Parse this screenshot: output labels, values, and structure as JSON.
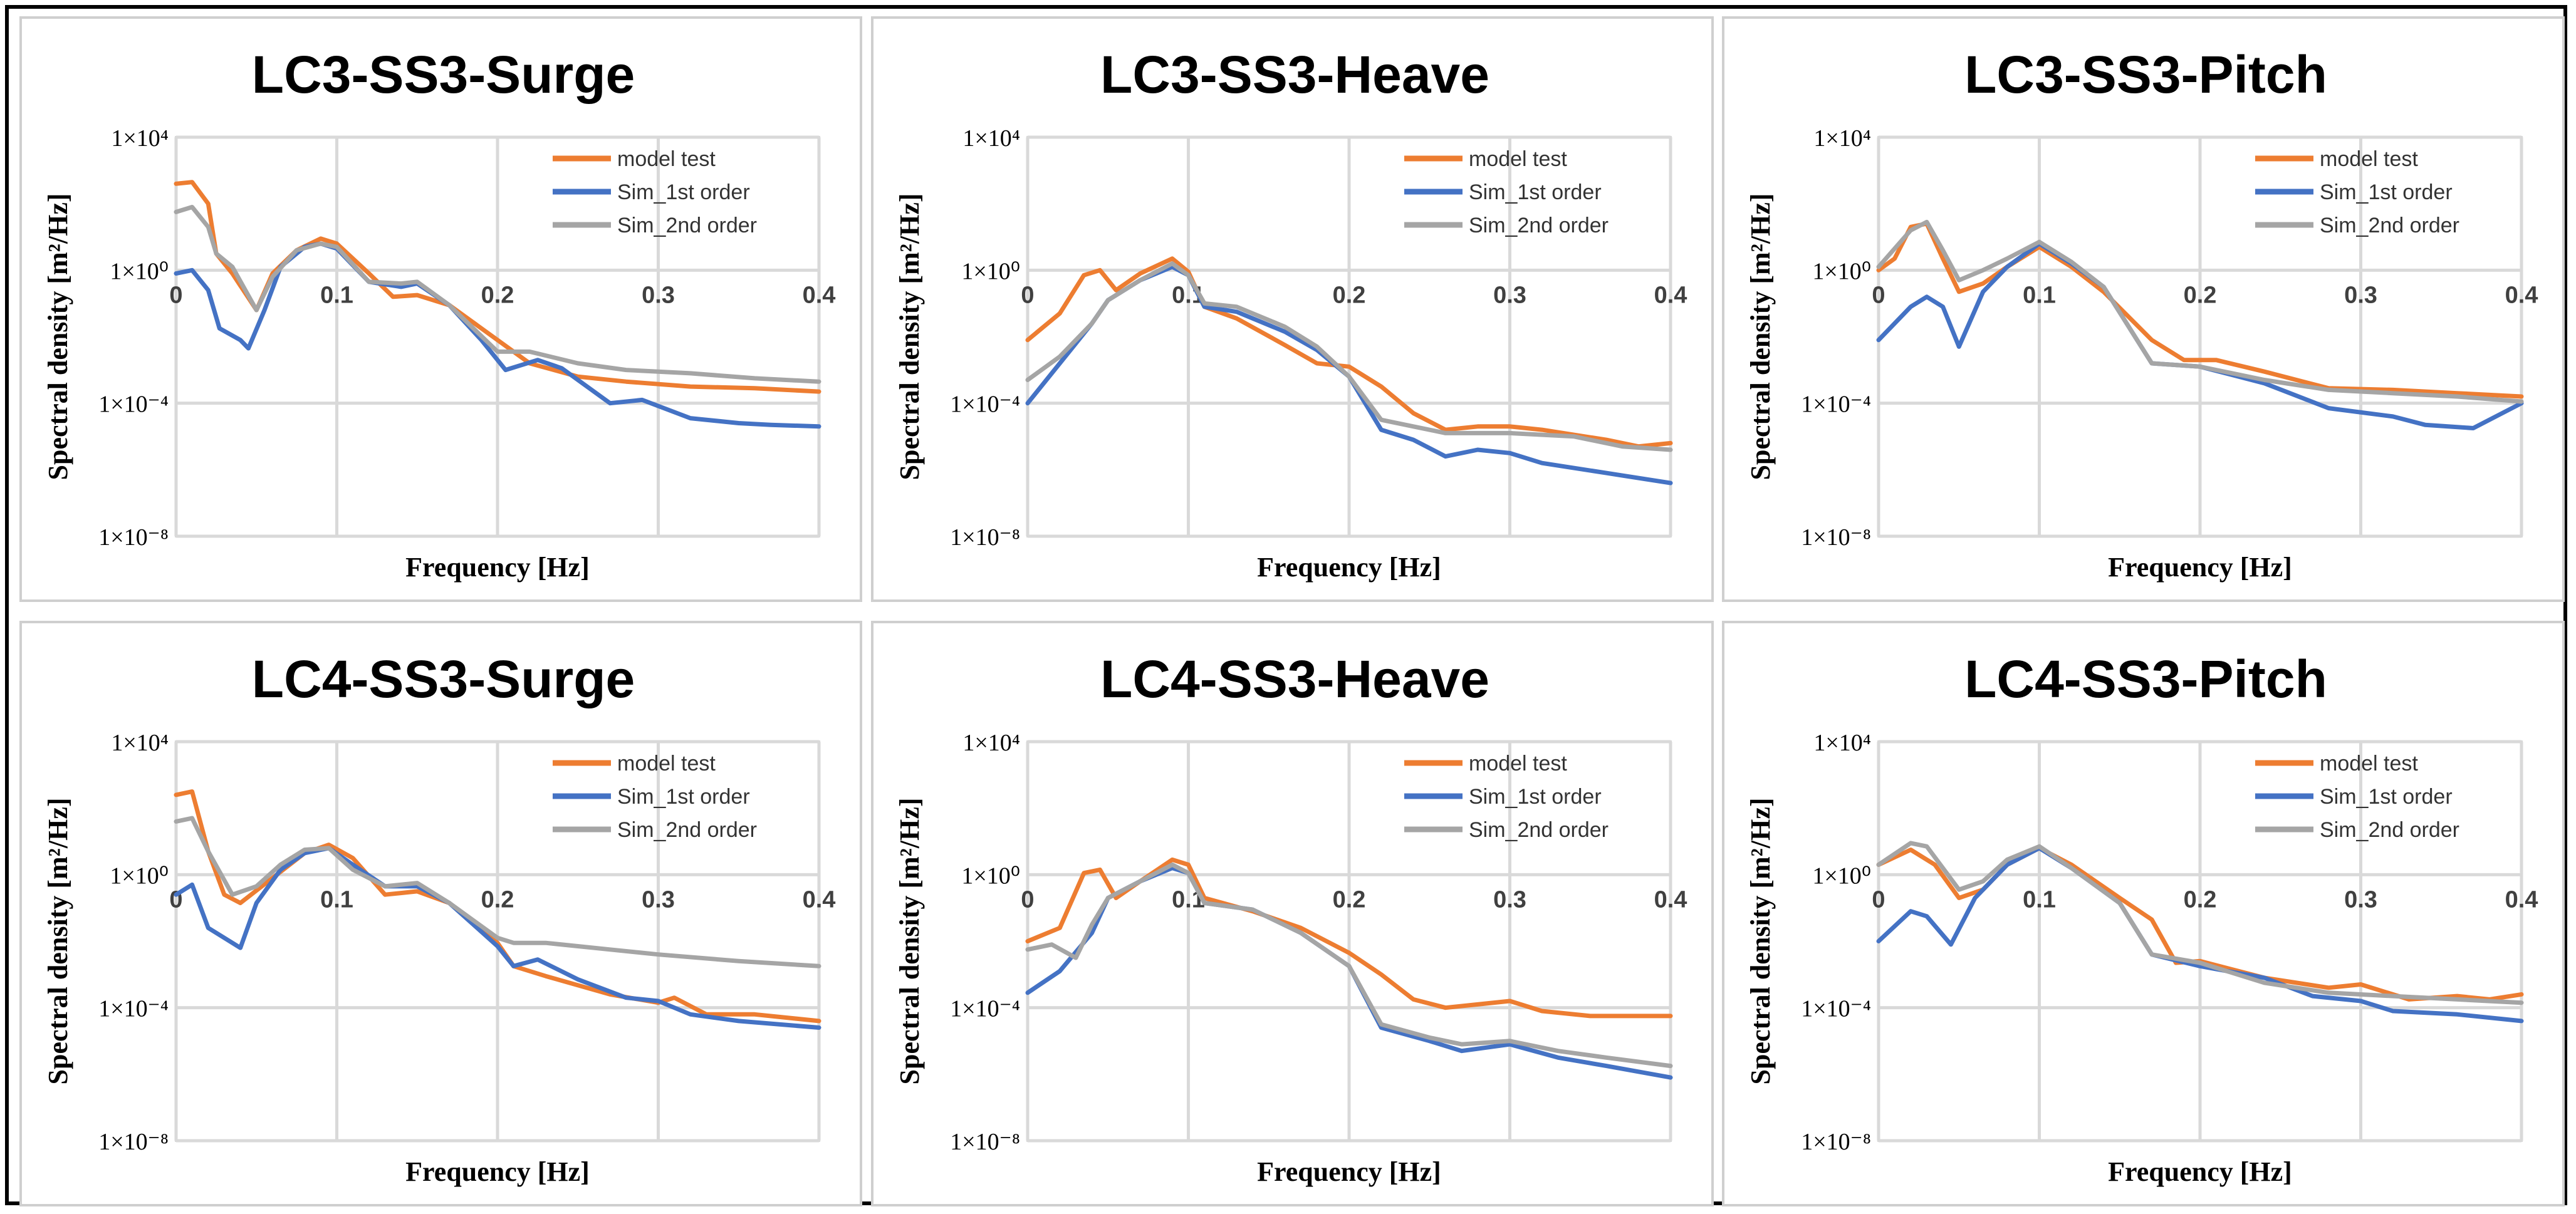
{
  "colors": {
    "model_test": "#ED7D31",
    "sim_1st": "#4472C4",
    "sim_2nd": "#A5A5A5",
    "grid": "#D9D9D9"
  },
  "chart_data": [
    {
      "type": "line",
      "title": "LC3-SS3-Surge",
      "xlabel": "Frequency [Hz]",
      "ylabel": "Spectral density [m²/Hz]",
      "xlim": [
        0,
        0.4
      ],
      "ylim_log10": [
        -8,
        4
      ],
      "yscale": "log",
      "grid": true,
      "legend_position": "top-right",
      "xticks": [
        0,
        0.1,
        0.2,
        0.3,
        0.4
      ],
      "xtick_labels": [
        "0",
        "0.1",
        "0.2",
        "0.3",
        "0.4"
      ],
      "yticks_log10": [
        4,
        0,
        -4,
        -8
      ],
      "ytick_labels": [
        "1×10⁴",
        "1×10⁰",
        "1×10⁻⁴",
        "1×10⁻⁸"
      ],
      "series": [
        {
          "name": "model test",
          "x": [
            0,
            0.01,
            0.02,
            0.025,
            0.035,
            0.05,
            0.06,
            0.075,
            0.09,
            0.1,
            0.12,
            0.135,
            0.15,
            0.17,
            0.2,
            0.22,
            0.25,
            0.28,
            0.32,
            0.36,
            0.4
          ],
          "y_log10": [
            2.6,
            2.65,
            2.0,
            0.5,
            -0.1,
            -1.2,
            -0.1,
            0.6,
            0.95,
            0.8,
            -0.1,
            -0.8,
            -0.75,
            -1.05,
            -2.1,
            -2.8,
            -3.2,
            -3.35,
            -3.5,
            -3.55,
            -3.65
          ]
        },
        {
          "name": "Sim_1st order",
          "x": [
            0,
            0.01,
            0.02,
            0.027,
            0.04,
            0.045,
            0.055,
            0.065,
            0.08,
            0.09,
            0.1,
            0.12,
            0.14,
            0.15,
            0.17,
            0.19,
            0.205,
            0.225,
            0.24,
            0.27,
            0.29,
            0.32,
            0.35,
            0.37,
            0.4
          ],
          "y_log10": [
            -0.1,
            0,
            -0.6,
            -1.75,
            -2.1,
            -2.35,
            -1.2,
            0.1,
            0.7,
            0.8,
            0.65,
            -0.35,
            -0.5,
            -0.4,
            -1.05,
            -2.1,
            -3.0,
            -2.7,
            -2.95,
            -4.0,
            -3.9,
            -4.45,
            -4.6,
            -4.65,
            -4.7
          ]
        },
        {
          "name": "Sim_2nd order",
          "x": [
            0,
            0.01,
            0.02,
            0.025,
            0.035,
            0.05,
            0.06,
            0.075,
            0.09,
            0.1,
            0.12,
            0.14,
            0.15,
            0.17,
            0.2,
            0.22,
            0.25,
            0.28,
            0.32,
            0.36,
            0.4
          ],
          "y_log10": [
            1.75,
            1.9,
            1.3,
            0.5,
            0.1,
            -1.2,
            -0.2,
            0.6,
            0.8,
            0.7,
            -0.35,
            -0.4,
            -0.35,
            -1.05,
            -2.45,
            -2.45,
            -2.8,
            -3.0,
            -3.1,
            -3.25,
            -3.35
          ]
        }
      ]
    },
    {
      "type": "line",
      "title": "LC3-SS3-Heave",
      "xlabel": "Frequency [Hz]",
      "ylabel": "Spectral density [m²/Hz]",
      "xlim": [
        0,
        0.4
      ],
      "ylim_log10": [
        -8,
        4
      ],
      "yscale": "log",
      "grid": true,
      "legend_position": "top-right",
      "xticks": [
        0,
        0.1,
        0.2,
        0.3,
        0.4
      ],
      "xtick_labels": [
        "0",
        "0.1",
        "0.2",
        "0.3",
        "0.4"
      ],
      "yticks_log10": [
        4,
        0,
        -4,
        -8
      ],
      "ytick_labels": [
        "1×10⁴",
        "1×10⁰",
        "1×10⁻⁴",
        "1×10⁻⁸"
      ],
      "series": [
        {
          "name": "model test",
          "x": [
            0,
            0.02,
            0.035,
            0.045,
            0.055,
            0.07,
            0.09,
            0.1,
            0.11,
            0.13,
            0.16,
            0.18,
            0.2,
            0.22,
            0.24,
            0.26,
            0.28,
            0.3,
            0.32,
            0.36,
            0.38,
            0.4
          ],
          "y_log10": [
            -2.1,
            -1.3,
            -0.15,
            0,
            -0.6,
            -0.1,
            0.35,
            -0.05,
            -1.1,
            -1.45,
            -2.25,
            -2.8,
            -2.9,
            -3.5,
            -4.3,
            -4.8,
            -4.7,
            -4.7,
            -4.8,
            -5.1,
            -5.3,
            -5.2
          ]
        },
        {
          "name": "Sim_1st order",
          "x": [
            0,
            0.02,
            0.04,
            0.05,
            0.07,
            0.09,
            0.1,
            0.11,
            0.13,
            0.16,
            0.18,
            0.2,
            0.22,
            0.24,
            0.26,
            0.28,
            0.3,
            0.32,
            0.36,
            0.4
          ],
          "y_log10": [
            -4,
            -2.8,
            -1.6,
            -0.9,
            -0.3,
            0.1,
            -0.15,
            -1.1,
            -1.25,
            -1.85,
            -2.4,
            -3.2,
            -4.8,
            -5.1,
            -5.6,
            -5.4,
            -5.5,
            -5.8,
            -6.1,
            -6.4
          ]
        },
        {
          "name": "Sim_2nd order",
          "x": [
            0,
            0.02,
            0.04,
            0.05,
            0.07,
            0.09,
            0.1,
            0.11,
            0.13,
            0.16,
            0.18,
            0.2,
            0.22,
            0.24,
            0.26,
            0.3,
            0.34,
            0.37,
            0.4
          ],
          "y_log10": [
            -3.3,
            -2.6,
            -1.6,
            -0.9,
            -0.3,
            0.2,
            -0.15,
            -1.0,
            -1.1,
            -1.7,
            -2.3,
            -3.2,
            -4.5,
            -4.7,
            -4.9,
            -4.9,
            -5.0,
            -5.3,
            -5.4
          ]
        }
      ]
    },
    {
      "type": "line",
      "title": "LC3-SS3-Pitch",
      "xlabel": "Frequency [Hz]",
      "ylabel": "Spectral density [m²/Hz]",
      "xlim": [
        0,
        0.4
      ],
      "ylim_log10": [
        -8,
        4
      ],
      "yscale": "log",
      "grid": true,
      "legend_position": "top-right",
      "xticks": [
        0,
        0.1,
        0.2,
        0.3,
        0.4
      ],
      "xtick_labels": [
        "0",
        "0.1",
        "0.2",
        "0.3",
        "0.4"
      ],
      "yticks_log10": [
        4,
        0,
        -4,
        -8
      ],
      "ytick_labels": [
        "1×10⁴",
        "1×10⁰",
        "1×10⁻⁴",
        "1×10⁻⁸"
      ],
      "series": [
        {
          "name": "model test",
          "x": [
            0,
            0.01,
            0.02,
            0.03,
            0.04,
            0.05,
            0.065,
            0.08,
            0.1,
            0.12,
            0.14,
            0.17,
            0.19,
            0.21,
            0.24,
            0.28,
            0.32,
            0.36,
            0.4
          ],
          "y_log10": [
            0,
            0.35,
            1.3,
            1.4,
            0.35,
            -0.65,
            -0.4,
            0.1,
            0.7,
            0.1,
            -0.65,
            -2.1,
            -2.7,
            -2.7,
            -3.05,
            -3.55,
            -3.6,
            -3.7,
            -3.8
          ]
        },
        {
          "name": "Sim_1st order",
          "x": [
            0,
            0.02,
            0.03,
            0.04,
            0.05,
            0.065,
            0.08,
            0.1,
            0.12,
            0.14,
            0.17,
            0.2,
            0.24,
            0.28,
            0.32,
            0.34,
            0.37,
            0.4
          ],
          "y_log10": [
            -2.1,
            -1.1,
            -0.8,
            -1.1,
            -2.3,
            -0.65,
            0.1,
            0.8,
            0.2,
            -0.5,
            -2.8,
            -2.9,
            -3.4,
            -4.15,
            -4.4,
            -4.65,
            -4.75,
            -4.0
          ]
        },
        {
          "name": "Sim_2nd order",
          "x": [
            0,
            0.02,
            0.03,
            0.04,
            0.05,
            0.065,
            0.08,
            0.1,
            0.12,
            0.14,
            0.17,
            0.2,
            0.24,
            0.28,
            0.32,
            0.36,
            0.4
          ],
          "y_log10": [
            0.1,
            1.2,
            1.45,
            0.6,
            -0.3,
            0,
            0.35,
            0.85,
            0.25,
            -0.5,
            -2.8,
            -2.9,
            -3.3,
            -3.6,
            -3.7,
            -3.8,
            -3.95
          ]
        }
      ]
    },
    {
      "type": "line",
      "title": "LC4-SS3-Surge",
      "xlabel": "Frequency [Hz]",
      "ylabel": "Spectral density [m²/Hz]",
      "xlim": [
        0,
        0.4
      ],
      "ylim_log10": [
        -8,
        4
      ],
      "yscale": "log",
      "grid": true,
      "legend_position": "top-right",
      "xticks": [
        0,
        0.1,
        0.2,
        0.3,
        0.4
      ],
      "xtick_labels": [
        "0",
        "0.1",
        "0.2",
        "0.3",
        "0.4"
      ],
      "yticks_log10": [
        4,
        0,
        -4,
        -8
      ],
      "ytick_labels": [
        "1×10⁴",
        "1×10⁰",
        "1×10⁻⁴",
        "1×10⁻⁸"
      ],
      "series": [
        {
          "name": "model test",
          "x": [
            0,
            0.01,
            0.02,
            0.03,
            0.04,
            0.06,
            0.08,
            0.095,
            0.11,
            0.13,
            0.15,
            0.17,
            0.2,
            0.21,
            0.23,
            0.27,
            0.3,
            0.31,
            0.33,
            0.36,
            0.4
          ],
          "y_log10": [
            2.4,
            2.5,
            0.7,
            -0.6,
            -0.85,
            -0.1,
            0.65,
            0.9,
            0.5,
            -0.6,
            -0.5,
            -0.85,
            -2.05,
            -2.75,
            -3.05,
            -3.6,
            -3.85,
            -3.7,
            -4.2,
            -4.2,
            -4.4
          ]
        },
        {
          "name": "Sim_1st order",
          "x": [
            0,
            0.01,
            0.02,
            0.04,
            0.05,
            0.065,
            0.08,
            0.095,
            0.11,
            0.13,
            0.15,
            0.17,
            0.2,
            0.21,
            0.225,
            0.25,
            0.28,
            0.3,
            0.32,
            0.35,
            0.4
          ],
          "y_log10": [
            -0.6,
            -0.3,
            -1.6,
            -2.2,
            -0.85,
            0.15,
            0.65,
            0.8,
            0.3,
            -0.35,
            -0.35,
            -0.85,
            -2.15,
            -2.75,
            -2.55,
            -3.15,
            -3.7,
            -3.8,
            -4.2,
            -4.4,
            -4.6
          ]
        },
        {
          "name": "Sim_2nd order",
          "x": [
            0,
            0.01,
            0.02,
            0.035,
            0.05,
            0.065,
            0.08,
            0.095,
            0.11,
            0.13,
            0.15,
            0.17,
            0.2,
            0.21,
            0.23,
            0.27,
            0.3,
            0.35,
            0.4
          ],
          "y_log10": [
            1.6,
            1.7,
            0.7,
            -0.6,
            -0.35,
            0.3,
            0.75,
            0.8,
            0.15,
            -0.35,
            -0.25,
            -0.85,
            -1.9,
            -2.05,
            -2.05,
            -2.25,
            -2.4,
            -2.6,
            -2.75
          ]
        }
      ]
    },
    {
      "type": "line",
      "title": "LC4-SS3-Heave",
      "xlabel": "Frequency [Hz]",
      "ylabel": "Spectral density [m²/Hz]",
      "xlim": [
        0,
        0.4
      ],
      "ylim_log10": [
        -8,
        4
      ],
      "yscale": "log",
      "grid": true,
      "legend_position": "top-right",
      "xticks": [
        0,
        0.1,
        0.2,
        0.3,
        0.4
      ],
      "xtick_labels": [
        "0",
        "0.1",
        "0.2",
        "0.3",
        "0.4"
      ],
      "yticks_log10": [
        4,
        0,
        -4,
        -8
      ],
      "ytick_labels": [
        "1×10⁴",
        "1×10⁰",
        "1×10⁻⁴",
        "1×10⁻⁸"
      ],
      "series": [
        {
          "name": "model test",
          "x": [
            0,
            0.02,
            0.035,
            0.045,
            0.055,
            0.07,
            0.09,
            0.1,
            0.11,
            0.14,
            0.17,
            0.2,
            0.22,
            0.24,
            0.26,
            0.28,
            0.3,
            0.32,
            0.35,
            0.4
          ],
          "y_log10": [
            -2.0,
            -1.6,
            0.05,
            0.15,
            -0.7,
            -0.2,
            0.45,
            0.3,
            -0.7,
            -1.1,
            -1.6,
            -2.35,
            -3.0,
            -3.75,
            -4.0,
            -3.9,
            -3.8,
            -4.1,
            -4.25,
            -4.25
          ]
        },
        {
          "name": "Sim_1st order",
          "x": [
            0,
            0.02,
            0.04,
            0.05,
            0.07,
            0.09,
            0.1,
            0.11,
            0.14,
            0.17,
            0.2,
            0.22,
            0.25,
            0.27,
            0.3,
            0.33,
            0.36,
            0.4
          ],
          "y_log10": [
            -3.55,
            -2.9,
            -1.75,
            -0.7,
            -0.2,
            0.2,
            0.05,
            -0.85,
            -1.05,
            -1.75,
            -2.75,
            -4.6,
            -5.0,
            -5.3,
            -5.1,
            -5.5,
            -5.75,
            -6.1
          ]
        },
        {
          "name": "Sim_2nd order",
          "x": [
            0,
            0.015,
            0.03,
            0.04,
            0.05,
            0.07,
            0.09,
            0.1,
            0.11,
            0.14,
            0.17,
            0.2,
            0.22,
            0.25,
            0.27,
            0.3,
            0.33,
            0.36,
            0.4
          ],
          "y_log10": [
            -2.25,
            -2.1,
            -2.5,
            -1.5,
            -0.7,
            -0.2,
            0.3,
            0.05,
            -0.85,
            -1.05,
            -1.75,
            -2.75,
            -4.5,
            -4.9,
            -5.1,
            -5.0,
            -5.3,
            -5.5,
            -5.75
          ]
        }
      ]
    },
    {
      "type": "line",
      "title": "LC4-SS3-Pitch",
      "xlabel": "Frequency [Hz]",
      "ylabel": "Spectral density [m²/Hz]",
      "xlim": [
        0,
        0.4
      ],
      "ylim_log10": [
        -8,
        4
      ],
      "yscale": "log",
      "grid": true,
      "legend_position": "top-right",
      "xticks": [
        0,
        0.1,
        0.2,
        0.3,
        0.4
      ],
      "xtick_labels": [
        "0",
        "0.1",
        "0.2",
        "0.3",
        "0.4"
      ],
      "yticks_log10": [
        4,
        0,
        -4,
        -8
      ],
      "ytick_labels": [
        "1×10⁴",
        "1×10⁰",
        "1×10⁻⁴",
        "1×10⁻⁸"
      ],
      "series": [
        {
          "name": "model test",
          "x": [
            0,
            0.02,
            0.035,
            0.05,
            0.065,
            0.08,
            0.1,
            0.12,
            0.15,
            0.17,
            0.185,
            0.2,
            0.24,
            0.28,
            0.3,
            0.33,
            0.36,
            0.38,
            0.4
          ],
          "y_log10": [
            0.3,
            0.75,
            0.3,
            -0.7,
            -0.45,
            0.3,
            0.8,
            0.3,
            -0.7,
            -1.35,
            -2.65,
            -2.6,
            -3.1,
            -3.4,
            -3.3,
            -3.75,
            -3.65,
            -3.75,
            -3.6
          ]
        },
        {
          "name": "Sim_1st order",
          "x": [
            0,
            0.02,
            0.03,
            0.045,
            0.06,
            0.08,
            0.1,
            0.12,
            0.15,
            0.17,
            0.2,
            0.24,
            0.27,
            0.3,
            0.32,
            0.36,
            0.4
          ],
          "y_log10": [
            -2.0,
            -1.1,
            -1.25,
            -2.1,
            -0.7,
            0.3,
            0.8,
            0.2,
            -0.85,
            -2.4,
            -2.75,
            -3.1,
            -3.65,
            -3.8,
            -4.1,
            -4.2,
            -4.4
          ]
        },
        {
          "name": "Sim_2nd order",
          "x": [
            0,
            0.02,
            0.03,
            0.05,
            0.065,
            0.08,
            0.1,
            0.12,
            0.15,
            0.17,
            0.2,
            0.24,
            0.28,
            0.32,
            0.36,
            0.4
          ],
          "y_log10": [
            0.3,
            0.95,
            0.85,
            -0.45,
            -0.2,
            0.45,
            0.85,
            0.2,
            -0.85,
            -2.4,
            -2.65,
            -3.25,
            -3.55,
            -3.65,
            -3.75,
            -3.85
          ]
        }
      ]
    }
  ]
}
